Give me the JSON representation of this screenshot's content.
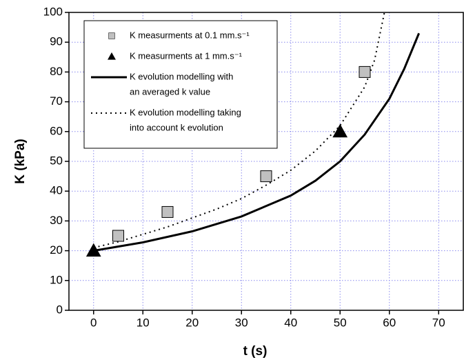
{
  "chart_data": {
    "type": "line",
    "x_label": "t (s)",
    "y_label": "K (kPa)",
    "xlim": [
      -5,
      75
    ],
    "ylim": [
      0,
      100
    ],
    "xticks": [
      0,
      10,
      20,
      30,
      40,
      50,
      60,
      70
    ],
    "yticks": [
      0,
      10,
      20,
      30,
      40,
      50,
      60,
      70,
      80,
      90,
      100
    ],
    "grid": true,
    "legend": "upper left",
    "series": [
      {
        "name": "K measurments at 0.1 mm.s⁻¹",
        "marker": "square",
        "color": "#c0c0c0",
        "x": [
          5,
          15,
          35,
          55
        ],
        "values": [
          25,
          33,
          45,
          80
        ]
      },
      {
        "name": "K measurments at 1 mm.s⁻¹",
        "marker": "triangle",
        "color": "#000000",
        "x": [
          0,
          50
        ],
        "values": [
          20,
          60
        ]
      },
      {
        "name": [
          "K evolution modelling with",
          "an averaged k value"
        ],
        "line": "solid",
        "color": "#000000",
        "x": [
          0,
          10,
          20,
          30,
          40,
          45,
          50,
          55,
          60,
          63,
          66
        ],
        "values": [
          20,
          22.8,
          26.5,
          31.5,
          38.5,
          43.5,
          50,
          59,
          71,
          81,
          93
        ]
      },
      {
        "name": [
          "K evolution modelling taking",
          "into account k evolution"
        ],
        "line": "dotted",
        "color": "#000000",
        "x": [
          0,
          5,
          10,
          15,
          20,
          25,
          30,
          35,
          40,
          45,
          50,
          55,
          57,
          59
        ],
        "values": [
          21,
          23,
          25.5,
          28,
          31,
          34,
          37.5,
          42,
          47,
          53.5,
          62,
          75,
          84,
          100
        ]
      }
    ]
  }
}
